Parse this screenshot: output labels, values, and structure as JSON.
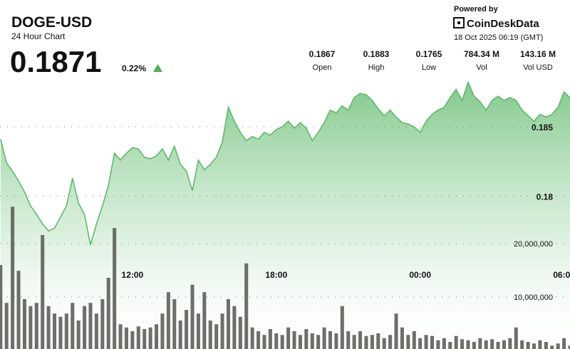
{
  "header": {
    "symbol": "DOGE-USD",
    "subtitle": "24 Hour Chart",
    "price": "0.1871",
    "change": "0.22%",
    "powered_by": "Powered by",
    "brand": "CoinDeskData",
    "timestamp": "18 Oct 2025 06:19 (GMT)",
    "stats": [
      {
        "value": "0.1867",
        "label": "Open"
      },
      {
        "value": "0.1883",
        "label": "High"
      },
      {
        "value": "0.1765",
        "label": "Low"
      },
      {
        "value": "784.34 M",
        "label": "Vol"
      },
      {
        "value": "143.16 M",
        "label": "Vol USD"
      }
    ]
  },
  "chart_data": {
    "type": "line",
    "area": true,
    "grid": true,
    "y_axis_side": "right",
    "categories": [
      null,
      null,
      null,
      null,
      null,
      null,
      null,
      null,
      null,
      null,
      null,
      null,
      null,
      null,
      null,
      null,
      null,
      null,
      null,
      null,
      null,
      null,
      "12:00",
      null,
      null,
      null,
      null,
      null,
      null,
      null,
      null,
      null,
      null,
      null,
      null,
      null,
      null,
      null,
      null,
      null,
      null,
      null,
      null,
      null,
      null,
      null,
      "18:00",
      null,
      null,
      null,
      null,
      null,
      null,
      null,
      null,
      null,
      null,
      null,
      null,
      null,
      null,
      null,
      null,
      null,
      null,
      null,
      null,
      null,
      null,
      null,
      "00:00",
      null,
      null,
      null,
      null,
      null,
      null,
      null,
      null,
      null,
      null,
      null,
      null,
      null,
      null,
      null,
      null,
      null,
      null,
      null,
      null,
      null,
      null,
      null,
      "06:00",
      null
    ],
    "ylim": [
      0.169,
      0.189
    ],
    "yticks": [
      0.18,
      0.185
    ],
    "y2lim": [
      0,
      30000000
    ],
    "y2ticks": [
      {
        "value": 20000000,
        "label": "20,000,000"
      },
      {
        "value": 10000000,
        "label": "10,000,000"
      }
    ],
    "series": [
      {
        "type": "line",
        "color": "#5fb96b",
        "values": [
          0.1841,
          0.1824,
          0.1818,
          0.1811,
          0.1803,
          0.1793,
          0.1787,
          0.178,
          0.1775,
          0.1777,
          0.1785,
          0.1793,
          0.1813,
          0.1795,
          0.1787,
          0.1765,
          0.178,
          0.1793,
          0.1808,
          0.1831,
          0.1826,
          0.1831,
          0.1835,
          0.1834,
          0.1828,
          0.1827,
          0.1829,
          0.1834,
          0.1826,
          0.1836,
          0.1823,
          0.1818,
          0.1804,
          0.1826,
          0.1819,
          0.1823,
          0.1828,
          0.1839,
          0.1864,
          0.1854,
          0.1846,
          0.184,
          0.1843,
          0.1841,
          0.1846,
          0.1844,
          0.1848,
          0.185,
          0.1854,
          0.1849,
          0.1853,
          0.1849,
          0.184,
          0.1846,
          0.1853,
          0.1862,
          0.186,
          0.1865,
          0.1862,
          0.1871,
          0.1874,
          0.1873,
          0.1869,
          0.1863,
          0.1858,
          0.1862,
          0.1857,
          0.1853,
          0.1852,
          0.185,
          0.1846,
          0.1854,
          0.1859,
          0.1862,
          0.1864,
          0.1871,
          0.1877,
          0.1869,
          0.1882,
          0.1872,
          0.1868,
          0.1862,
          0.1869,
          0.1872,
          0.1869,
          0.1871,
          0.1869,
          0.1862,
          0.1858,
          0.1854,
          0.1859,
          0.1857,
          0.1859,
          0.1864,
          0.1875,
          0.1871
        ]
      },
      {
        "type": "bar",
        "axis": "y2",
        "color": "#5c6158",
        "values": [
          16000000,
          8900000,
          26900000,
          14900000,
          9600000,
          8300000,
          8900000,
          21600000,
          8300000,
          6900000,
          6300000,
          6900000,
          8900000,
          5600000,
          8300000,
          8900000,
          6900000,
          9600000,
          13600000,
          22900000,
          4900000,
          4300000,
          3600000,
          4500000,
          4000000,
          4300000,
          4900000,
          6900000,
          10900000,
          9600000,
          5600000,
          7600000,
          12300000,
          6900000,
          10900000,
          5600000,
          4900000,
          6900000,
          9600000,
          8300000,
          6300000,
          16300000,
          4300000,
          3600000,
          2900000,
          4000000,
          3200000,
          2900000,
          4300000,
          3600000,
          2900000,
          4000000,
          3200000,
          2900000,
          4300000,
          3600000,
          3200000,
          8300000,
          3600000,
          2900000,
          3600000,
          2700000,
          2900000,
          3200000,
          2300000,
          2900000,
          6900000,
          4300000,
          2900000,
          3600000,
          2300000,
          2900000,
          2700000,
          1900000,
          2300000,
          1600000,
          2700000,
          2100000,
          1900000,
          1600000,
          2300000,
          1900000,
          2100000,
          1600000,
          1900000,
          2300000,
          4300000,
          1900000,
          1600000,
          1300000,
          1900000,
          1600000,
          900000,
          1300000,
          2300000,
          900000
        ]
      }
    ]
  }
}
